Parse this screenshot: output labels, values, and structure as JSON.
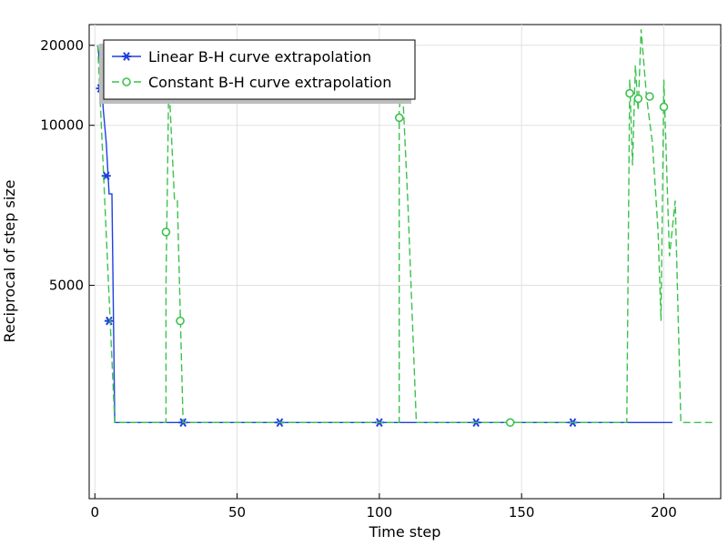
{
  "chart_data": {
    "type": "line",
    "title": "",
    "xlabel": "Time step",
    "ylabel": "Reciprocal of step size",
    "xlim": [
      -2,
      220
    ],
    "ylim": [
      3000,
      27000
    ],
    "y_scale": "reciprocal",
    "x_ticks": [
      "0",
      "50",
      "100",
      "150",
      "200"
    ],
    "y_ticks": [
      "5000",
      "10000",
      "20000"
    ],
    "grid": true,
    "legend_position": "top-left",
    "series": [
      {
        "name": "Linear B-H curve extrapolation",
        "color": "#1f3fe0",
        "line_style": "solid",
        "marker": "asterisk",
        "points": [
          [
            1,
            20000
          ],
          [
            2,
            15400
          ],
          [
            3,
            11000
          ],
          [
            4,
            9000
          ],
          [
            5,
            7000
          ],
          [
            6,
            7000
          ],
          [
            7,
            3500
          ],
          [
            203,
            3500
          ]
        ],
        "marker_points": [
          [
            2,
            13000
          ],
          [
            4,
            7600
          ],
          [
            5,
            4500
          ],
          [
            31,
            3500
          ],
          [
            65,
            3500
          ],
          [
            100,
            3500
          ],
          [
            134,
            3500
          ],
          [
            168,
            3500
          ]
        ]
      },
      {
        "name": "Constant B-H curve extrapolation",
        "color": "#3cc24d",
        "line_style": "dashed",
        "marker": "circle",
        "points": [
          [
            1,
            20000
          ],
          [
            7,
            3500
          ],
          [
            25,
            3500
          ],
          [
            25,
            5000
          ],
          [
            26,
            14000
          ],
          [
            28,
            6800
          ],
          [
            29,
            6800
          ],
          [
            31,
            3500
          ],
          [
            107,
            3500
          ],
          [
            107,
            11000
          ],
          [
            108,
            14000
          ],
          [
            110,
            6800
          ],
          [
            113,
            3500
          ],
          [
            187,
            3500
          ],
          [
            188,
            14000
          ],
          [
            189,
            8000
          ],
          [
            190,
            16000
          ],
          [
            191,
            11000
          ],
          [
            192,
            25000
          ],
          [
            194,
            12000
          ],
          [
            196,
            9000
          ],
          [
            198,
            6000
          ],
          [
            199,
            4500
          ],
          [
            200,
            14000
          ],
          [
            202,
            5500
          ],
          [
            204,
            6800
          ],
          [
            206,
            3500
          ],
          [
            218,
            3500
          ]
        ],
        "marker_points": [
          [
            25,
            6000
          ],
          [
            30,
            4500
          ],
          [
            107,
            10500
          ],
          [
            146,
            3500
          ],
          [
            188,
            12500
          ],
          [
            191,
            12000
          ],
          [
            195,
            12200
          ],
          [
            200,
            11300
          ]
        ]
      }
    ]
  }
}
